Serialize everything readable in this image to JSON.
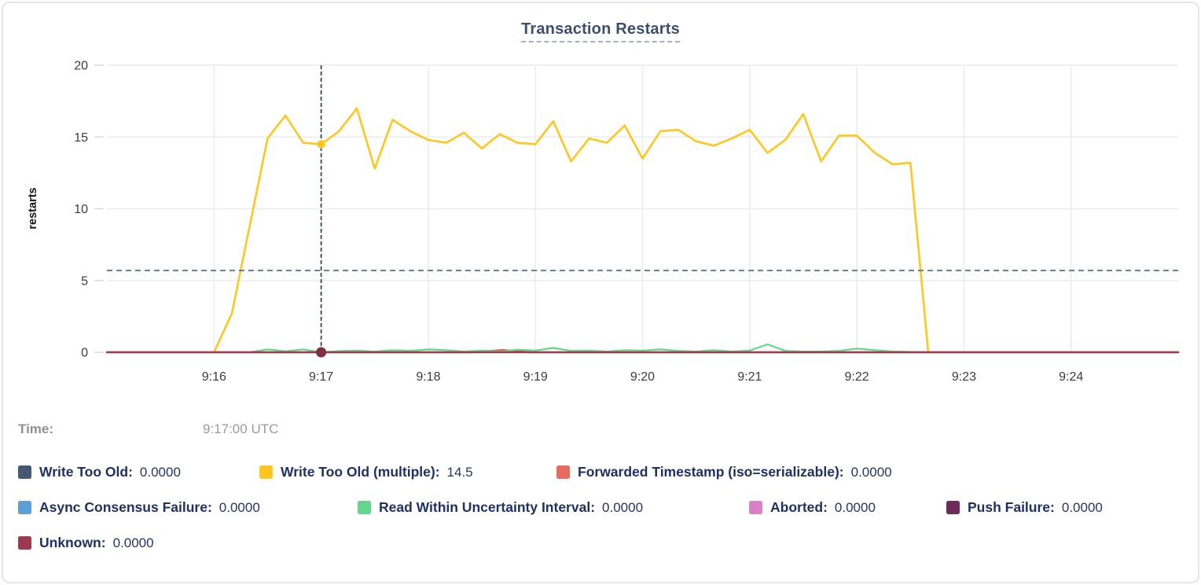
{
  "header": {
    "title": "Transaction Restarts"
  },
  "tooltip": {
    "time_label": "Time:",
    "time_value": "9:17:00 UTC",
    "rows": [
      [
        {
          "key": "write-too-old",
          "label": "Write Too Old:",
          "value": "0.0000",
          "color": "#475872"
        },
        {
          "key": "write-too-old-multiple",
          "label": "Write Too Old (multiple):",
          "value": "14.5",
          "color": "#ffc61e"
        },
        {
          "key": "forwarded-timestamp-iso-serializable",
          "label": "Forwarded Timestamp (iso=serializable):",
          "value": "0.0000",
          "color": "#e96a5f"
        }
      ],
      [
        {
          "key": "async-consensus-failure",
          "label": "Async Consensus Failure:",
          "value": "0.0000",
          "color": "#5c9fd6"
        },
        {
          "key": "read-within-uncertainty-interval",
          "label": "Read Within Uncertainty Interval:",
          "value": "0.0000",
          "color": "#63d68c"
        },
        {
          "key": "aborted",
          "label": "Aborted:",
          "value": "0.0000",
          "color": "#da80c6"
        },
        {
          "key": "push-failure",
          "label": "Push Failure:",
          "value": "0.0000",
          "color": "#6e2a58"
        }
      ],
      [
        {
          "key": "unknown",
          "label": "Unknown:",
          "value": "0.0000",
          "color": "#9d3a4d"
        }
      ]
    ]
  },
  "chart_data": {
    "type": "line",
    "title": "Transaction Restarts",
    "xlabel": "",
    "ylabel": "restarts",
    "ylim": [
      0,
      20
    ],
    "yticks": [
      0,
      5,
      10,
      15,
      20
    ],
    "grid": true,
    "legend_position": "bottom",
    "x_domain": {
      "start": "9:15:00",
      "end": "9:25:00",
      "seconds": 600
    },
    "xticks": [
      {
        "label": "9:16",
        "t": 60
      },
      {
        "label": "9:17",
        "t": 120
      },
      {
        "label": "9:18",
        "t": 180
      },
      {
        "label": "9:19",
        "t": 240
      },
      {
        "label": "9:20",
        "t": 300
      },
      {
        "label": "9:21",
        "t": 360
      },
      {
        "label": "9:22",
        "t": 420
      },
      {
        "label": "9:23",
        "t": 480
      },
      {
        "label": "9:24",
        "t": 540
      }
    ],
    "crosshair": {
      "time_label": "9:17:00 UTC",
      "t": 120,
      "y_value": 5.7,
      "points": [
        {
          "key": "write-too-old-multiple",
          "t": 120,
          "v": 14.5,
          "color": "#ffc61e",
          "r": 5.2
        },
        {
          "key": "unknown",
          "t": 120,
          "v": 0,
          "color": "#7c3042",
          "r": 6.5
        }
      ]
    },
    "series": [
      {
        "key": "write-too-old",
        "name": "Write Too Old",
        "color": "#475872",
        "width": 2,
        "points": [
          [
            0,
            0
          ],
          [
            600,
            0
          ]
        ]
      },
      {
        "key": "write-too-old-multiple",
        "name": "Write Too Old (multiple)",
        "color": "#ffc61e",
        "width": 2.6,
        "start_t": 60,
        "step": 10,
        "values": [
          0,
          2.7,
          8.8,
          14.9,
          16.5,
          14.6,
          14.5,
          15.4,
          17.0,
          12.8,
          16.2,
          15.4,
          14.8,
          14.6,
          15.3,
          14.2,
          15.2,
          14.6,
          14.5,
          16.1,
          13.3,
          14.9,
          14.6,
          15.8,
          13.5,
          15.4,
          15.5,
          14.7,
          14.4,
          14.9,
          15.5,
          13.9,
          14.8,
          16.6,
          13.3,
          15.1,
          15.1,
          13.9,
          13.1,
          13.2,
          0
        ]
      },
      {
        "key": "forwarded-timestamp-iso-serializable",
        "name": "Forwarded Timestamp (iso=serializable)",
        "color": "#da4f4b",
        "width": 2.2,
        "points": [
          [
            0,
            0
          ],
          [
            205,
            0
          ],
          [
            213,
            0.08
          ],
          [
            222,
            0.16
          ],
          [
            231,
            0.06
          ],
          [
            238,
            0
          ],
          [
            600,
            0
          ]
        ]
      },
      {
        "key": "async-consensus-failure",
        "name": "Async Consensus Failure",
        "color": "#5c9fd6",
        "width": 2,
        "points": [
          [
            0,
            0
          ],
          [
            600,
            0
          ]
        ]
      },
      {
        "key": "read-within-uncertainty-interval",
        "name": "Read Within Uncertainty Interval",
        "color": "#63d68c",
        "width": 2.2,
        "start_t": 80,
        "step": 10,
        "values": [
          0,
          0.2,
          0.07,
          0.2,
          0,
          0.08,
          0.12,
          0.05,
          0.15,
          0.1,
          0.2,
          0.15,
          0.05,
          0.12,
          0.05,
          0.18,
          0.12,
          0.3,
          0.1,
          0.12,
          0.05,
          0.15,
          0.12,
          0.2,
          0.1,
          0.05,
          0.15,
          0.05,
          0.12,
          0.55,
          0.1,
          0.05,
          0.05,
          0.1,
          0.25,
          0.15,
          0.05,
          0.02,
          0
        ]
      },
      {
        "key": "aborted",
        "name": "Aborted",
        "color": "#da80c6",
        "width": 2,
        "points": [
          [
            0,
            0
          ],
          [
            600,
            0
          ]
        ]
      },
      {
        "key": "push-failure",
        "name": "Push Failure",
        "color": "#6e2a58",
        "width": 2,
        "points": [
          [
            0,
            0
          ],
          [
            600,
            0
          ]
        ]
      },
      {
        "key": "unknown",
        "name": "Unknown",
        "color": "#9d3a4d",
        "width": 2.6,
        "points": [
          [
            0,
            0
          ],
          [
            600,
            0
          ]
        ]
      }
    ]
  }
}
